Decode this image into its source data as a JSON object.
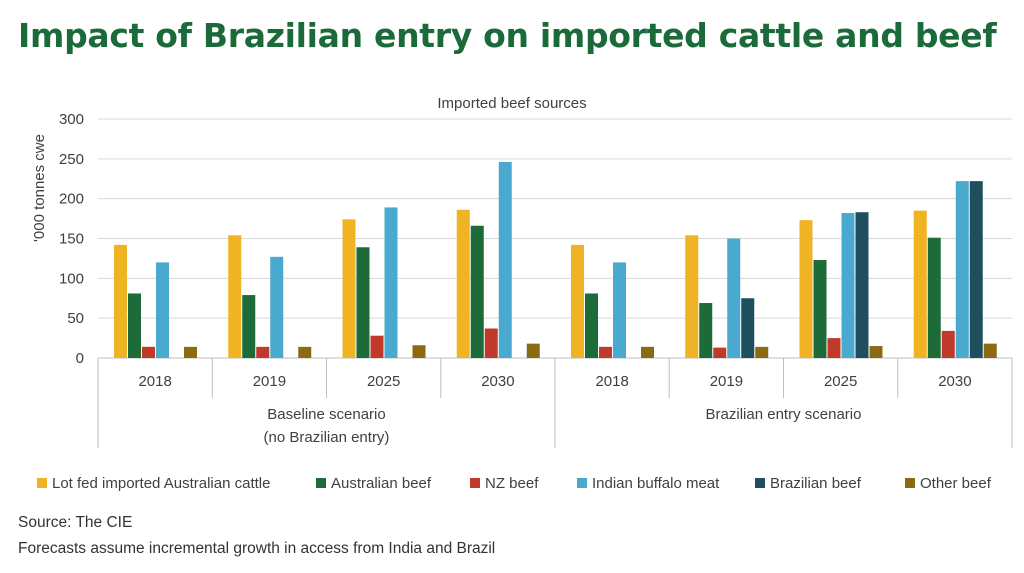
{
  "page": {
    "title": "Impact of Brazilian entry on imported cattle and beef",
    "source": "Source: The CIE",
    "note": "Forecasts assume incremental growth in access from India and Brazil"
  },
  "colors": {
    "title": "#1b6a3a",
    "Lot fed imported Australian cattle": "#f0b323",
    "Australian beef": "#1e6b3a",
    "NZ  beef": "#c0392b",
    "Indian buffalo meat": "#4aa9cf",
    "Brazilian beef": "#1f4e5f",
    "Other beef": "#8b6b12"
  },
  "chart_data": {
    "type": "bar",
    "title": "Imported beef sources",
    "ylabel": "'000 tonnes cwe",
    "ylim": [
      0,
      300
    ],
    "yticks": [
      0,
      50,
      100,
      150,
      200,
      250,
      300
    ],
    "grid": true,
    "legend": "bottom",
    "groups": [
      {
        "label": "Baseline scenario",
        "sublabel": "(no Brazilian entry)",
        "categories": [
          "2018",
          "2019",
          "2025",
          "2030"
        ]
      },
      {
        "label": "Brazilian entry scenario",
        "sublabel": "",
        "categories": [
          "2018",
          "2019",
          "2025",
          "2030"
        ]
      }
    ],
    "series": [
      {
        "name": "Lot fed imported Australian cattle",
        "values": [
          142,
          154,
          174,
          186,
          142,
          154,
          173,
          185
        ]
      },
      {
        "name": "Australian beef",
        "values": [
          81,
          79,
          139,
          166,
          81,
          69,
          123,
          151
        ]
      },
      {
        "name": "NZ  beef",
        "values": [
          14,
          14,
          28,
          37,
          14,
          13,
          25,
          34
        ]
      },
      {
        "name": "Indian buffalo meat",
        "values": [
          120,
          127,
          189,
          246,
          120,
          150,
          182,
          222
        ]
      },
      {
        "name": "Brazilian beef",
        "values": [
          null,
          null,
          null,
          null,
          null,
          75,
          183,
          222
        ]
      },
      {
        "name": "Other beef",
        "values": [
          14,
          14,
          16,
          18,
          14,
          14,
          15,
          18
        ]
      }
    ]
  }
}
